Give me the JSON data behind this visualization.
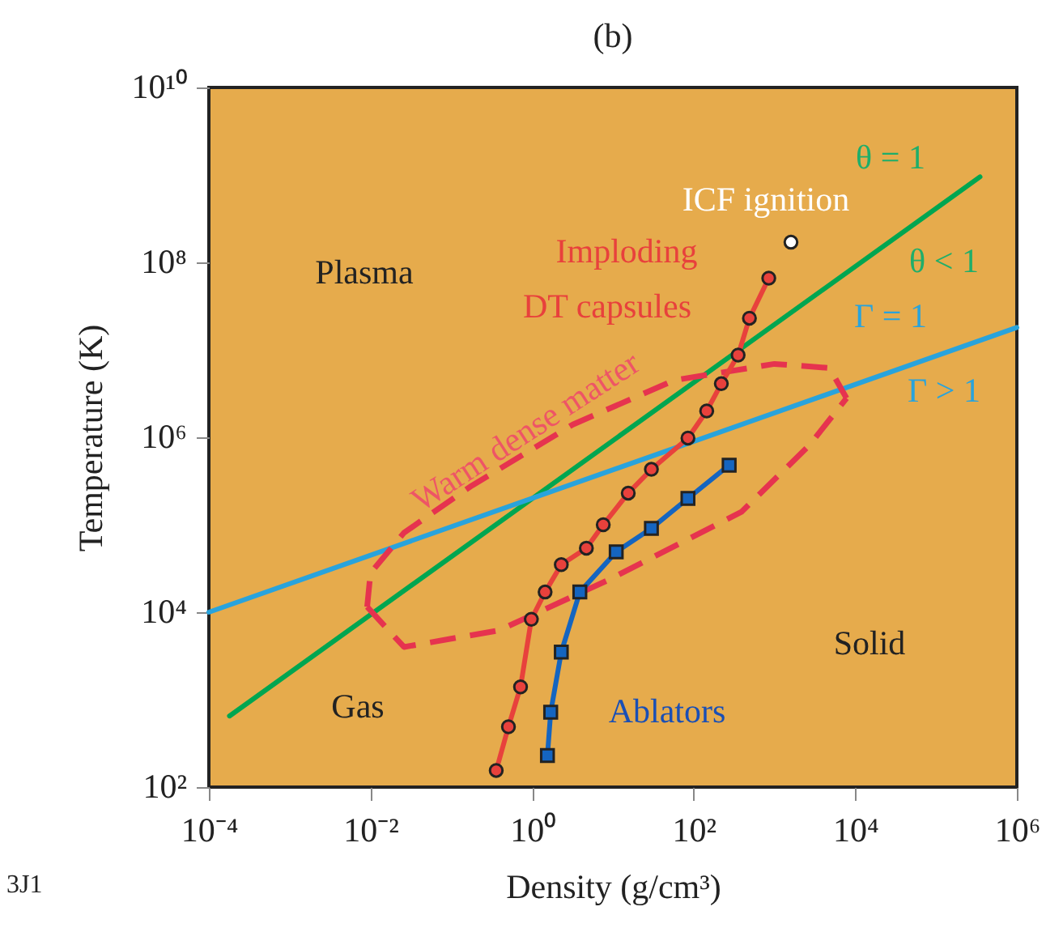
{
  "chart_data": {
    "type": "line",
    "title": "(b)",
    "xlabel": "Density (g/cm³)",
    "ylabel": "Temperature (K)",
    "log": "xy",
    "grid": false,
    "xlim": [
      0.0001,
      1000000
    ],
    "ylim": [
      100,
      10000000000
    ],
    "xticks": [
      {
        "value": 0.0001,
        "label": "10⁻⁴"
      },
      {
        "value": 0.01,
        "label": "10⁻²"
      },
      {
        "value": 1,
        "label": "10⁰"
      },
      {
        "value": 100,
        "label": "10²"
      },
      {
        "value": 10000,
        "label": "10⁴"
      },
      {
        "value": 1000000,
        "label": "10⁶"
      }
    ],
    "yticks": [
      {
        "value": 100,
        "label": "10²"
      },
      {
        "value": 10000,
        "label": "10⁴"
      },
      {
        "value": 1000000,
        "label": "10⁶"
      },
      {
        "value": 100000000,
        "label": "10⁸"
      },
      {
        "value": 10000000000,
        "label": "10¹⁰"
      }
    ],
    "series": [
      {
        "color": "#00a651",
        "marker": "none",
        "line_style": "solid",
        "x": [
          0.00018,
          350000
        ],
        "values": [
          650,
          950000000
        ]
      },
      {
        "color": "#29a3dc",
        "marker": "none",
        "line_style": "solid",
        "x": [
          0.0001,
          1000000
        ],
        "values": [
          10000,
          18000000
        ]
      },
      {
        "color": "#e6334f",
        "marker": "none",
        "line_style": "dashed",
        "x": [
          0.0091,
          0.026,
          0.39,
          8.5,
          390,
          2700,
          7800
        ],
        "values": [
          11500,
          4000,
          6200,
          23000,
          140000,
          810000,
          2800000
        ]
      },
      {
        "color": "#e6334f",
        "marker": "none",
        "line_style": "dashed",
        "x": [
          0.0091,
          0.01,
          0.026,
          0.18,
          3.2,
          58,
          1000,
          4800,
          7800
        ],
        "values": [
          11500,
          28000,
          81000,
          280000,
          1400000,
          4500000,
          6900000,
          6200000,
          2800000
        ]
      },
      {
        "color": "#e8413c",
        "marker": "circle",
        "line_style": "solid",
        "x": [
          0.36,
          0.51,
          0.72,
          0.98,
          1.45,
          2.3,
          4.7,
          7.6,
          15.5,
          30,
          85,
          145,
          220,
          355,
          490,
          850
        ],
        "values": [
          155,
          490,
          1400,
          8300,
          17000,
          35000,
          54000,
          100000,
          230000,
          430000,
          980000,
          2000000,
          4100000,
          8700000,
          23000000,
          66000000
        ]
      },
      {
        "color": "#1565c0",
        "marker": "square",
        "line_style": "solid",
        "x": [
          1.55,
          1.7,
          2.3,
          3.9,
          11,
          30,
          85,
          275
        ],
        "values": [
          230,
          720,
          3500,
          17000,
          49000,
          91000,
          200000,
          480000
        ]
      },
      {
        "type": "scatter",
        "color": "#ffffff",
        "marker": "circle",
        "x": [
          1600
        ],
        "values": [
          170000000
        ]
      }
    ],
    "annotations": [
      "Plasma",
      "Gas",
      "Solid",
      "Ablators",
      "Imploding",
      "DT capsules",
      "ICF ignition",
      "θ = 1",
      "θ < 1",
      "Γ = 1",
      "Γ > 1",
      "Warm dense matter",
      "3J1"
    ]
  }
}
